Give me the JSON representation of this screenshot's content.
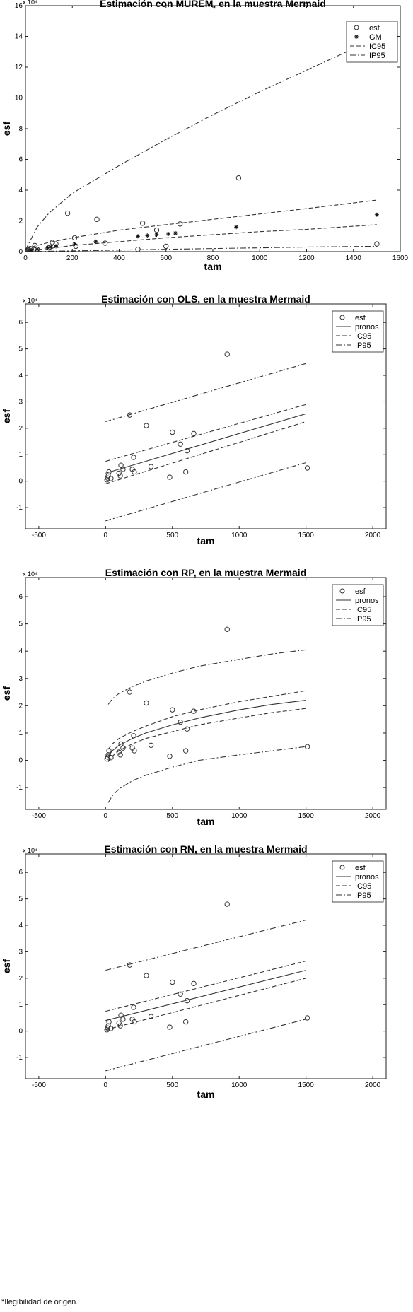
{
  "footnote": "*Ilegibilidad de origen.",
  "chart_data": [
    {
      "type": "scatter",
      "title": "Estimación con MUREM, en la muestra Mermaid",
      "xlabel": "tam",
      "ylabel": "esf",
      "y_multiplier": "x 10⁴",
      "xlim": [
        0,
        1600
      ],
      "ylim": [
        0,
        16
      ],
      "xticks": [
        0,
        200,
        400,
        600,
        800,
        1000,
        1200,
        1400,
        1600
      ],
      "yticks": [
        0,
        2,
        4,
        6,
        8,
        10,
        12,
        14,
        16
      ],
      "legend": [
        "esf",
        "GM",
        "IC95",
        "IP95"
      ],
      "legend_position": "top-right",
      "series": [
        {
          "name": "esf",
          "marker": "circle",
          "points": [
            [
              10,
              0.05
            ],
            [
              15,
              0.1
            ],
            [
              20,
              0.2
            ],
            [
              25,
              0.15
            ],
            [
              40,
              0.4
            ],
            [
              50,
              0.15
            ],
            [
              100,
              0.25
            ],
            [
              115,
              0.6
            ],
            [
              130,
              0.5
            ],
            [
              180,
              2.5
            ],
            [
              210,
              0.9
            ],
            [
              215,
              0.35
            ],
            [
              305,
              2.1
            ],
            [
              340,
              0.55
            ],
            [
              480,
              0.15
            ],
            [
              500,
              1.85
            ],
            [
              560,
              1.4
            ],
            [
              600,
              0.35
            ],
            [
              660,
              1.8
            ],
            [
              910,
              4.8
            ],
            [
              1500,
              0.5
            ]
          ]
        },
        {
          "name": "GM",
          "marker": "star",
          "points": [
            [
              15,
              0.05
            ],
            [
              25,
              0.1
            ],
            [
              50,
              0.15
            ],
            [
              95,
              0.25
            ],
            [
              110,
              0.3
            ],
            [
              130,
              0.35
            ],
            [
              210,
              0.5
            ],
            [
              300,
              0.65
            ],
            [
              480,
              1.0
            ],
            [
              520,
              1.05
            ],
            [
              560,
              1.1
            ],
            [
              610,
              1.15
            ],
            [
              640,
              1.2
            ],
            [
              900,
              1.6
            ],
            [
              1500,
              2.4
            ]
          ]
        },
        {
          "name": "IC95",
          "line": "dashed",
          "points": [
            [
              0,
              0.2
            ],
            [
              100,
              0.6
            ],
            [
              200,
              0.9
            ],
            [
              400,
              1.4
            ],
            [
              600,
              1.75
            ],
            [
              800,
              2.1
            ],
            [
              1000,
              2.45
            ],
            [
              1200,
              2.8
            ],
            [
              1500,
              3.35
            ]
          ]
        },
        {
          "name": "IC95",
          "line": "dashed",
          "points": [
            [
              0,
              0.05
            ],
            [
              100,
              0.2
            ],
            [
              200,
              0.4
            ],
            [
              400,
              0.65
            ],
            [
              600,
              0.9
            ],
            [
              800,
              1.1
            ],
            [
              1000,
              1.3
            ],
            [
              1200,
              1.45
            ],
            [
              1500,
              1.75
            ]
          ]
        },
        {
          "name": "IP95",
          "line": "dashdot",
          "points": [
            [
              0,
              0.1
            ],
            [
              50,
              1.6
            ],
            [
              100,
              2.5
            ],
            [
              200,
              3.8
            ],
            [
              400,
              5.6
            ],
            [
              600,
              7.3
            ],
            [
              800,
              8.9
            ],
            [
              1000,
              10.4
            ],
            [
              1200,
              11.8
            ],
            [
              1400,
              13.2
            ],
            [
              1500,
              13.9
            ]
          ]
        },
        {
          "name": "IP95",
          "line": "dashdot",
          "points": [
            [
              0,
              0.0
            ],
            [
              200,
              0.05
            ],
            [
              400,
              0.1
            ],
            [
              600,
              0.15
            ],
            [
              800,
              0.2
            ],
            [
              1000,
              0.25
            ],
            [
              1200,
              0.3
            ],
            [
              1500,
              0.35
            ]
          ]
        }
      ]
    },
    {
      "type": "scatter",
      "title": "Estimación con OLS, en la muestra Mermaid",
      "xlabel": "tam",
      "ylabel": "esf",
      "y_multiplier": "x 10⁴",
      "xlim": [
        -600,
        2100
      ],
      "ylim": [
        -1.8,
        6.7
      ],
      "xticks": [
        -500,
        0,
        500,
        1000,
        1500,
        2000
      ],
      "yticks": [
        -1,
        0,
        1,
        2,
        3,
        4,
        5,
        6
      ],
      "legend": [
        "esf",
        "pronos",
        "IC95",
        "IP95"
      ],
      "legend_position": "top-right",
      "series": [
        {
          "name": "esf",
          "marker": "circle",
          "points": [
            [
              10,
              0.05
            ],
            [
              15,
              0.12
            ],
            [
              20,
              0.2
            ],
            [
              25,
              0.35
            ],
            [
              40,
              0.1
            ],
            [
              100,
              0.3
            ],
            [
              115,
              0.6
            ],
            [
              130,
              0.45
            ],
            [
              110,
              0.2
            ],
            [
              180,
              2.5
            ],
            [
              210,
              0.9
            ],
            [
              200,
              0.45
            ],
            [
              215,
              0.35
            ],
            [
              305,
              2.1
            ],
            [
              340,
              0.55
            ],
            [
              480,
              0.15
            ],
            [
              500,
              1.85
            ],
            [
              560,
              1.4
            ],
            [
              600,
              0.35
            ],
            [
              610,
              1.15
            ],
            [
              660,
              1.8
            ],
            [
              910,
              4.8
            ],
            [
              1510,
              0.5
            ]
          ]
        },
        {
          "name": "pronos",
          "line": "solid",
          "points": [
            [
              0,
              0.3
            ],
            [
              1500,
              2.55
            ]
          ]
        },
        {
          "name": "IC95",
          "line": "dashed",
          "points": [
            [
              0,
              0.75
            ],
            [
              1500,
              2.9
            ]
          ]
        },
        {
          "name": "IC95",
          "line": "dashed",
          "points": [
            [
              0,
              -0.1
            ],
            [
              1500,
              2.25
            ]
          ]
        },
        {
          "name": "IP95",
          "line": "dashdot",
          "points": [
            [
              0,
              2.25
            ],
            [
              1500,
              4.45
            ]
          ]
        },
        {
          "name": "IP95",
          "line": "dashdot",
          "points": [
            [
              0,
              -1.5
            ],
            [
              1500,
              0.7
            ]
          ]
        }
      ]
    },
    {
      "type": "scatter",
      "title": "Estimación con RP, en la muestra Mermaid",
      "xlabel": "tam",
      "ylabel": "esf",
      "y_multiplier": "x 10⁴",
      "xlim": [
        -600,
        2100
      ],
      "ylim": [
        -1.8,
        6.7
      ],
      "xticks": [
        -500,
        0,
        500,
        1000,
        1500,
        2000
      ],
      "yticks": [
        -1,
        0,
        1,
        2,
        3,
        4,
        5,
        6
      ],
      "legend": [
        "esf",
        "pronos",
        "IC95",
        "IP95"
      ],
      "legend_position": "top-right",
      "series": [
        {
          "name": "esf",
          "marker": "circle",
          "points": [
            [
              10,
              0.05
            ],
            [
              15,
              0.12
            ],
            [
              20,
              0.2
            ],
            [
              25,
              0.35
            ],
            [
              40,
              0.1
            ],
            [
              100,
              0.3
            ],
            [
              115,
              0.6
            ],
            [
              130,
              0.45
            ],
            [
              110,
              0.2
            ],
            [
              180,
              2.5
            ],
            [
              210,
              0.9
            ],
            [
              200,
              0.45
            ],
            [
              215,
              0.35
            ],
            [
              305,
              2.1
            ],
            [
              340,
              0.55
            ],
            [
              480,
              0.15
            ],
            [
              500,
              1.85
            ],
            [
              560,
              1.4
            ],
            [
              600,
              0.35
            ],
            [
              610,
              1.15
            ],
            [
              660,
              1.8
            ],
            [
              910,
              4.8
            ],
            [
              1510,
              0.5
            ]
          ]
        },
        {
          "name": "pronos",
          "line": "solid",
          "points": [
            [
              20,
              0.15
            ],
            [
              50,
              0.35
            ],
            [
              100,
              0.55
            ],
            [
              200,
              0.8
            ],
            [
              300,
              1.0
            ],
            [
              500,
              1.3
            ],
            [
              700,
              1.55
            ],
            [
              1000,
              1.85
            ],
            [
              1250,
              2.05
            ],
            [
              1500,
              2.2
            ]
          ]
        },
        {
          "name": "IC95",
          "line": "dashed",
          "points": [
            [
              20,
              0.4
            ],
            [
              50,
              0.6
            ],
            [
              100,
              0.8
            ],
            [
              200,
              1.05
            ],
            [
              300,
              1.25
            ],
            [
              500,
              1.6
            ],
            [
              700,
              1.85
            ],
            [
              1000,
              2.15
            ],
            [
              1250,
              2.35
            ],
            [
              1500,
              2.55
            ]
          ]
        },
        {
          "name": "IC95",
          "line": "dashed",
          "points": [
            [
              20,
              -0.05
            ],
            [
              50,
              0.15
            ],
            [
              100,
              0.35
            ],
            [
              200,
              0.6
            ],
            [
              300,
              0.8
            ],
            [
              500,
              1.05
            ],
            [
              700,
              1.3
            ],
            [
              1000,
              1.55
            ],
            [
              1250,
              1.75
            ],
            [
              1500,
              1.9
            ]
          ]
        },
        {
          "name": "IP95",
          "line": "dashdot",
          "points": [
            [
              20,
              2.05
            ],
            [
              50,
              2.25
            ],
            [
              100,
              2.45
            ],
            [
              200,
              2.7
            ],
            [
              300,
              2.9
            ],
            [
              500,
              3.2
            ],
            [
              700,
              3.45
            ],
            [
              1000,
              3.7
            ],
            [
              1250,
              3.9
            ],
            [
              1500,
              4.05
            ]
          ]
        },
        {
          "name": "IP95",
          "line": "dashdot",
          "points": [
            [
              20,
              -1.55
            ],
            [
              50,
              -1.3
            ],
            [
              100,
              -1.05
            ],
            [
              200,
              -0.75
            ],
            [
              300,
              -0.55
            ],
            [
              500,
              -0.25
            ],
            [
              700,
              0.0
            ],
            [
              1000,
              0.2
            ],
            [
              1250,
              0.35
            ],
            [
              1500,
              0.5
            ]
          ]
        }
      ]
    },
    {
      "type": "scatter",
      "title": "Estimación con RN, en la muestra Mermaid",
      "xlabel": "tam",
      "ylabel": "esf",
      "y_multiplier": "x 10⁴",
      "xlim": [
        -600,
        2100
      ],
      "ylim": [
        -1.8,
        6.7
      ],
      "xticks": [
        -500,
        0,
        500,
        1000,
        1500,
        2000
      ],
      "yticks": [
        -1,
        0,
        1,
        2,
        3,
        4,
        5,
        6
      ],
      "legend": [
        "esf",
        "pronos",
        "IC95",
        "IP95"
      ],
      "legend_position": "top-right",
      "series": [
        {
          "name": "esf",
          "marker": "circle",
          "points": [
            [
              10,
              0.05
            ],
            [
              15,
              0.12
            ],
            [
              20,
              0.2
            ],
            [
              25,
              0.35
            ],
            [
              40,
              0.1
            ],
            [
              100,
              0.3
            ],
            [
              115,
              0.6
            ],
            [
              130,
              0.45
            ],
            [
              110,
              0.2
            ],
            [
              180,
              2.5
            ],
            [
              210,
              0.9
            ],
            [
              200,
              0.45
            ],
            [
              215,
              0.35
            ],
            [
              305,
              2.1
            ],
            [
              340,
              0.55
            ],
            [
              480,
              0.15
            ],
            [
              500,
              1.85
            ],
            [
              560,
              1.4
            ],
            [
              600,
              0.35
            ],
            [
              610,
              1.15
            ],
            [
              660,
              1.8
            ],
            [
              910,
              4.8
            ],
            [
              1510,
              0.5
            ]
          ]
        },
        {
          "name": "pronos",
          "line": "solid",
          "points": [
            [
              0,
              0.4
            ],
            [
              1500,
              2.3
            ]
          ]
        },
        {
          "name": "IC95",
          "line": "dashed",
          "points": [
            [
              0,
              0.75
            ],
            [
              1500,
              2.65
            ]
          ]
        },
        {
          "name": "IC95",
          "line": "dashed",
          "points": [
            [
              0,
              0.05
            ],
            [
              1500,
              2.0
            ]
          ]
        },
        {
          "name": "IP95",
          "line": "dashdot",
          "points": [
            [
              0,
              2.3
            ],
            [
              1500,
              4.2
            ]
          ]
        },
        {
          "name": "IP95",
          "line": "dashdot",
          "points": [
            [
              0,
              -1.5
            ],
            [
              1500,
              0.45
            ]
          ]
        }
      ]
    }
  ]
}
